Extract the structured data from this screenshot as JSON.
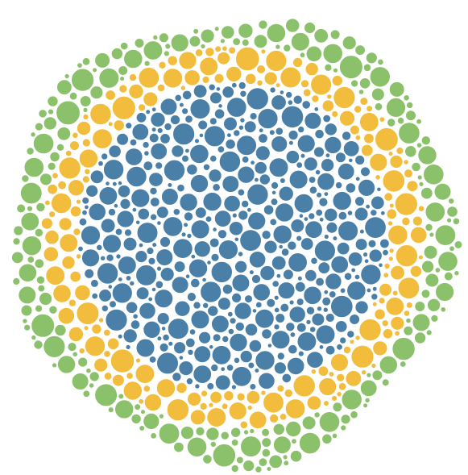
{
  "chart_data": {
    "type": "circle-packing",
    "title": "",
    "legend": "none",
    "grid": false,
    "groups": [
      {
        "name": "",
        "color": "#4a7fa8",
        "ring": "inner",
        "approx_count": 1150
      },
      {
        "name": "",
        "color": "#f2bc3c",
        "ring": "middle",
        "approx_count": 300
      },
      {
        "name": "",
        "color": "#8bc16a",
        "ring": "outer",
        "approx_count": 550
      }
    ]
  }
}
